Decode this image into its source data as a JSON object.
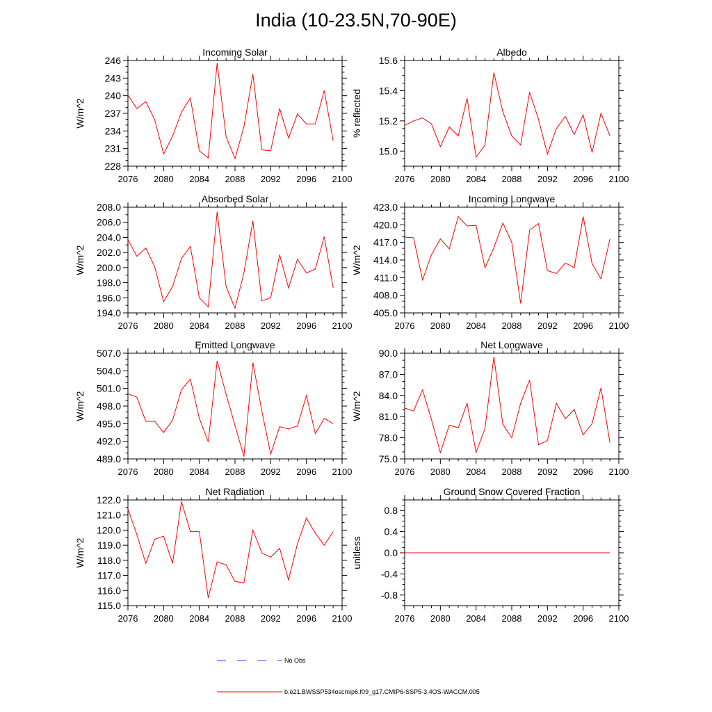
{
  "title": "India (10-23.5N,70-90E)",
  "legend": {
    "obs_label": "No Obs",
    "model_label": "b.e21.BWSSP534oscmip6.f09_g17.CMIP6-SSP5-3.4OS-WACCM.005",
    "obs_color": "#3b3bd6",
    "model_color": "#ff0000"
  },
  "chart_data": [
    {
      "type": "line",
      "title": "Incoming Solar",
      "ylabel": "W/m^2",
      "xlim": [
        2076,
        2100
      ],
      "xticks": [
        2076,
        2080,
        2084,
        2088,
        2092,
        2096,
        2100
      ],
      "ylim": [
        228,
        246
      ],
      "yticks": [
        "228",
        "231",
        "234",
        "237",
        "240",
        "243",
        "246"
      ],
      "yminor": 1,
      "x": [
        2076,
        2077,
        2078,
        2079,
        2080,
        2081,
        2082,
        2083,
        2084,
        2085,
        2086,
        2087,
        2088,
        2089,
        2090,
        2091,
        2092,
        2093,
        2094,
        2095,
        2096,
        2097,
        2098,
        2099
      ],
      "values": [
        240.1,
        237.8,
        239.0,
        235.9,
        230.1,
        233.1,
        237.2,
        239.6,
        230.6,
        229.4,
        245.6,
        233.0,
        229.3,
        234.7,
        243.7,
        230.8,
        230.6,
        237.8,
        232.8,
        236.9,
        235.2,
        235.2,
        240.9,
        232.3
      ]
    },
    {
      "type": "line",
      "title": "Albedo",
      "ylabel": "% reflected",
      "xlim": [
        2076,
        2100
      ],
      "xticks": [
        2076,
        2080,
        2084,
        2088,
        2092,
        2096,
        2100
      ],
      "ylim": [
        14.9,
        15.6
      ],
      "yticks": [
        "15.0",
        "15.2",
        "15.4",
        "15.6"
      ],
      "yminor": 0.05,
      "x": [
        2076,
        2077,
        2078,
        2079,
        2080,
        2081,
        2082,
        2083,
        2084,
        2085,
        2086,
        2087,
        2088,
        2089,
        2090,
        2091,
        2092,
        2093,
        2094,
        2095,
        2096,
        2097,
        2098,
        2099
      ],
      "values": [
        15.17,
        15.2,
        15.22,
        15.18,
        15.03,
        15.16,
        15.1,
        15.35,
        14.96,
        15.04,
        15.52,
        15.26,
        15.1,
        15.04,
        15.39,
        15.21,
        14.98,
        15.15,
        15.23,
        15.11,
        15.24,
        14.99,
        15.25,
        15.1
      ]
    },
    {
      "type": "line",
      "title": "Absorbed Solar",
      "ylabel": "W/m^2",
      "xlim": [
        2076,
        2100
      ],
      "xticks": [
        2076,
        2080,
        2084,
        2088,
        2092,
        2096,
        2100
      ],
      "ylim": [
        194,
        208
      ],
      "yticks": [
        "194.0",
        "196.0",
        "198.0",
        "200.0",
        "202.0",
        "204.0",
        "206.0",
        "208.0"
      ],
      "yminor": 1,
      "x": [
        2076,
        2077,
        2078,
        2079,
        2080,
        2081,
        2082,
        2083,
        2084,
        2085,
        2086,
        2087,
        2088,
        2089,
        2090,
        2091,
        2092,
        2093,
        2094,
        2095,
        2096,
        2097,
        2098,
        2099
      ],
      "values": [
        203.7,
        201.5,
        202.6,
        200.1,
        195.5,
        197.5,
        201.2,
        202.8,
        196.0,
        194.8,
        207.4,
        197.5,
        194.6,
        199.3,
        206.2,
        195.6,
        196.0,
        201.7,
        197.3,
        201.1,
        199.3,
        199.8,
        204.1,
        197.3
      ]
    },
    {
      "type": "line",
      "title": "Incoming Longwave",
      "ylabel": "W/m^2",
      "xlim": [
        2076,
        2100
      ],
      "xticks": [
        2076,
        2080,
        2084,
        2088,
        2092,
        2096,
        2100
      ],
      "ylim": [
        405,
        423
      ],
      "yticks": [
        "405.0",
        "408.0",
        "411.0",
        "414.0",
        "417.0",
        "420.0",
        "423.0"
      ],
      "yminor": 1,
      "x": [
        2076,
        2077,
        2078,
        2079,
        2080,
        2081,
        2082,
        2083,
        2084,
        2085,
        2086,
        2087,
        2088,
        2089,
        2090,
        2091,
        2092,
        2093,
        2094,
        2095,
        2096,
        2097,
        2098,
        2099
      ],
      "values": [
        417.9,
        417.8,
        410.6,
        414.9,
        417.6,
        415.9,
        421.4,
        419.8,
        419.9,
        412.7,
        416.1,
        420.3,
        417.0,
        406.6,
        419.1,
        420.2,
        412.2,
        411.7,
        413.5,
        412.7,
        421.4,
        413.4,
        410.8,
        417.6
      ]
    },
    {
      "type": "line",
      "title": "Emitted Longwave",
      "ylabel": "W/m^2",
      "xlim": [
        2076,
        2100
      ],
      "xticks": [
        2076,
        2080,
        2084,
        2088,
        2092,
        2096,
        2100
      ],
      "ylim": [
        489,
        507
      ],
      "yticks": [
        "489.0",
        "492.0",
        "495.0",
        "498.0",
        "501.0",
        "504.0",
        "507.0"
      ],
      "yminor": 1,
      "x": [
        2076,
        2077,
        2078,
        2079,
        2080,
        2081,
        2082,
        2083,
        2084,
        2085,
        2086,
        2087,
        2088,
        2089,
        2090,
        2091,
        2092,
        2093,
        2094,
        2095,
        2096,
        2097,
        2098,
        2099
      ],
      "values": [
        500.1,
        499.5,
        495.4,
        495.4,
        493.5,
        495.6,
        500.8,
        502.6,
        495.9,
        491.9,
        505.7,
        500.0,
        494.7,
        489.4,
        505.4,
        497.2,
        489.8,
        494.5,
        494.1,
        494.6,
        499.8,
        493.3,
        495.9,
        495.0
      ]
    },
    {
      "type": "line",
      "title": "Net Longwave",
      "ylabel": "W/m^2",
      "xlim": [
        2076,
        2100
      ],
      "xticks": [
        2076,
        2080,
        2084,
        2088,
        2092,
        2096,
        2100
      ],
      "ylim": [
        75,
        90
      ],
      "yticks": [
        "75.0",
        "78.0",
        "81.0",
        "84.0",
        "87.0",
        "90.0"
      ],
      "yminor": 1,
      "x": [
        2076,
        2077,
        2078,
        2079,
        2080,
        2081,
        2082,
        2083,
        2084,
        2085,
        2086,
        2087,
        2088,
        2089,
        2090,
        2091,
        2092,
        2093,
        2094,
        2095,
        2096,
        2097,
        2098,
        2099
      ],
      "values": [
        82.2,
        81.8,
        84.8,
        80.6,
        75.9,
        79.8,
        79.4,
        82.9,
        75.9,
        79.3,
        89.5,
        79.9,
        78.0,
        82.9,
        86.2,
        77.0,
        77.6,
        82.9,
        80.7,
        82.0,
        78.4,
        80.0,
        85.1,
        77.3
      ]
    },
    {
      "type": "line",
      "title": "Net Radiation",
      "ylabel": "W/m^2",
      "xlim": [
        2076,
        2100
      ],
      "xticks": [
        2076,
        2080,
        2084,
        2088,
        2092,
        2096,
        2100
      ],
      "ylim": [
        115,
        122
      ],
      "yticks": [
        "115.0",
        "116.0",
        "117.0",
        "118.0",
        "119.0",
        "120.0",
        "121.0",
        "122.0"
      ],
      "yminor": 0.5,
      "x": [
        2076,
        2077,
        2078,
        2079,
        2080,
        2081,
        2082,
        2083,
        2084,
        2085,
        2086,
        2087,
        2088,
        2089,
        2090,
        2091,
        2092,
        2093,
        2094,
        2095,
        2096,
        2097,
        2098,
        2099
      ],
      "values": [
        121.4,
        119.7,
        117.8,
        119.4,
        119.6,
        117.8,
        121.9,
        119.9,
        119.9,
        115.5,
        117.9,
        117.7,
        116.6,
        116.5,
        120.0,
        118.5,
        118.2,
        118.8,
        116.7,
        119.1,
        120.8,
        119.8,
        119.0,
        119.9
      ]
    },
    {
      "type": "line",
      "title": "Ground Snow Covered Fraction",
      "ylabel": "unitless",
      "xlim": [
        2076,
        2100
      ],
      "xticks": [
        2076,
        2080,
        2084,
        2088,
        2092,
        2096,
        2100
      ],
      "ylim": [
        -1.0,
        1.0
      ],
      "yticks": [
        "-0.8",
        "-0.4",
        "0.0",
        "0.4",
        "0.8"
      ],
      "yminor": 0.1,
      "x": [
        2076,
        2077,
        2078,
        2079,
        2080,
        2081,
        2082,
        2083,
        2084,
        2085,
        2086,
        2087,
        2088,
        2089,
        2090,
        2091,
        2092,
        2093,
        2094,
        2095,
        2096,
        2097,
        2098,
        2099
      ],
      "values": [
        0,
        0,
        0,
        0,
        0,
        0,
        0,
        0,
        0,
        0,
        0,
        0,
        0,
        0,
        0,
        0,
        0,
        0,
        0,
        0,
        0,
        0,
        0,
        0
      ]
    }
  ]
}
